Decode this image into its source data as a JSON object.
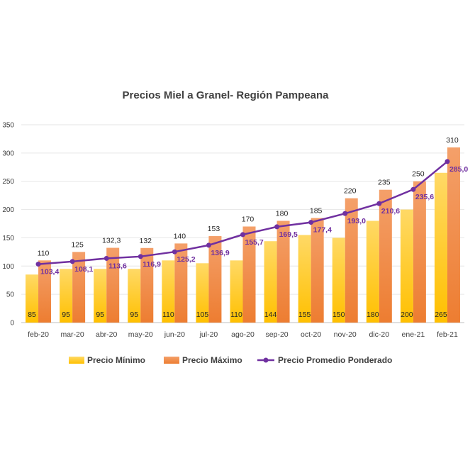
{
  "chart_data": {
    "type": "bar",
    "title": "Precios Miel a Granel- Región Pampeana",
    "xlabel": "",
    "ylabel": "",
    "ylim": [
      0,
      350
    ],
    "yticks": [
      0,
      50,
      100,
      150,
      200,
      250,
      300,
      350
    ],
    "grid": true,
    "legend_position": "bottom",
    "categories": [
      "feb-20",
      "mar-20",
      "abr-20",
      "may-20",
      "jun-20",
      "jul-20",
      "ago-20",
      "sep-20",
      "oct-20",
      "nov-20",
      "dic-20",
      "ene-21",
      "feb-21"
    ],
    "series": [
      {
        "name": "Precio Mínimo",
        "kind": "bar",
        "color": "#ffc000",
        "values": [
          85,
          95,
          95,
          95,
          110,
          105,
          110,
          144,
          155,
          150,
          180,
          200,
          265
        ],
        "labels": [
          "85",
          "95",
          "95",
          "95",
          "110",
          "105",
          "110",
          "144",
          "155",
          "150",
          "180",
          "200",
          "265"
        ]
      },
      {
        "name": "Precio Máximo",
        "kind": "bar",
        "color": "#ed7d31",
        "values": [
          110,
          125,
          132.3,
          132,
          140,
          153,
          170,
          180,
          185,
          220,
          235,
          250,
          310
        ],
        "labels": [
          "110",
          "125",
          "132,3",
          "132",
          "140",
          "153",
          "170",
          "180",
          "185",
          "220",
          "235",
          "250",
          "310"
        ]
      },
      {
        "name": "Precio Promedio Ponderado",
        "kind": "line",
        "color": "#7030a0",
        "values": [
          103.4,
          108.1,
          113.6,
          116.9,
          125.2,
          136.9,
          155.7,
          169.5,
          177.4,
          193.0,
          210.6,
          235.6,
          285.0
        ],
        "labels": [
          "103,4",
          "108,1",
          "113,6",
          "116,9",
          "125,2",
          "136,9",
          "155,7",
          "169,5",
          "177,4",
          "193,0",
          "210,6",
          "235,6",
          "285,0"
        ]
      }
    ]
  }
}
